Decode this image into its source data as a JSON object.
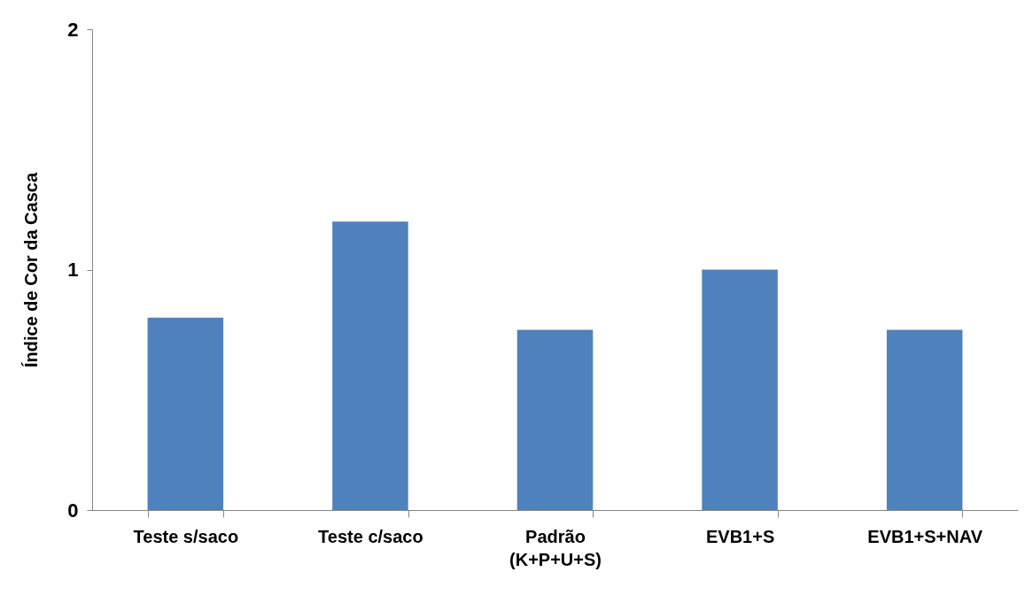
{
  "chart_data": {
    "type": "bar",
    "ylabel": "Índice de Cor da Casca",
    "categories": [
      "Teste s/saco",
      "Teste c/saco",
      "Padrão\n(K+P+U+S)",
      "EVB1+S",
      "EVB1+S+NAV"
    ],
    "values": [
      0.8,
      1.2,
      0.75,
      1.0,
      0.75
    ],
    "color": "#4f81bd",
    "ylim": [
      0,
      2
    ],
    "yticks": [
      0,
      1,
      2
    ],
    "grid": false
  }
}
